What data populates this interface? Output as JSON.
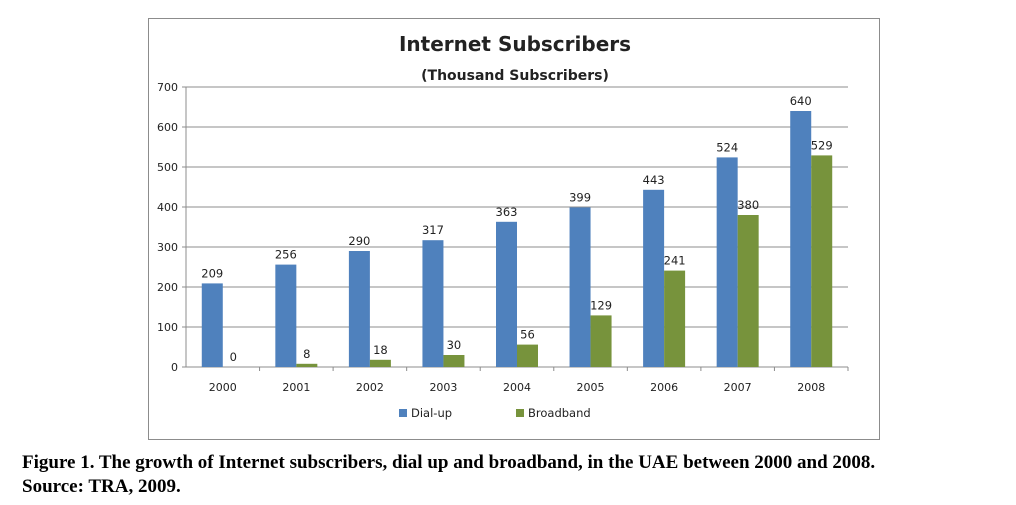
{
  "chart_data": {
    "type": "bar",
    "title": "Internet Subscribers",
    "subtitle": "(Thousand Subscribers)",
    "categories": [
      "2000",
      "2001",
      "2002",
      "2003",
      "2004",
      "2005",
      "2006",
      "2007",
      "2008"
    ],
    "series": [
      {
        "name": "Dial-up",
        "color": "#4f81bd",
        "values": [
          209,
          256,
          290,
          317,
          363,
          399,
          443,
          524,
          640
        ]
      },
      {
        "name": "Broadband",
        "color": "#77933c",
        "values": [
          0,
          8,
          18,
          30,
          56,
          129,
          241,
          380,
          529
        ]
      }
    ],
    "yticks": [
      0,
      100,
      200,
      300,
      400,
      500,
      600,
      700
    ],
    "ylim": [
      0,
      700
    ],
    "grid": true,
    "legend": "bottom"
  },
  "caption": {
    "line1": "Figure 1. The growth of Internet subscribers, dial up and broadband, in the UAE between 2000 and 2008.",
    "line2": "Source: TRA, 2009."
  }
}
